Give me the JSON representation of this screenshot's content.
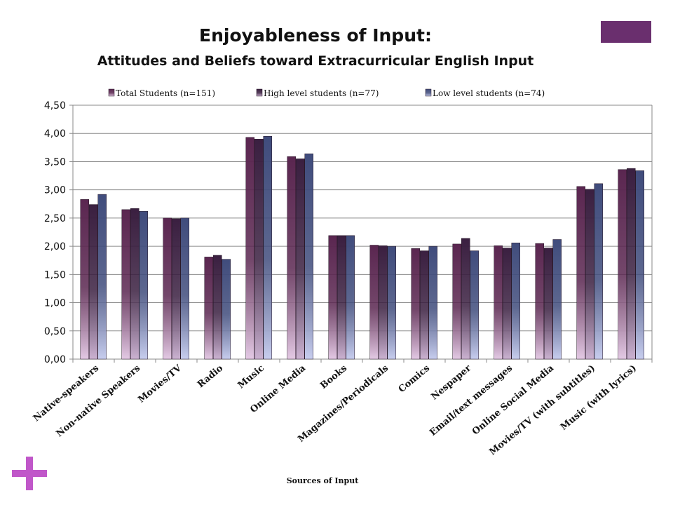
{
  "slide": {
    "title": "Enjoyableness of Input:",
    "subtitle": "Attitudes and Beliefs toward Extracurricular English Input",
    "accent_color": "#6a2f6e",
    "plus_color": "#c057c9"
  },
  "chart_data": {
    "type": "bar",
    "xlabel": "Sources of Input",
    "ylabel": "",
    "ylim": [
      0,
      4.5
    ],
    "yticks": [
      "0,00",
      "0,50",
      "1,00",
      "1,50",
      "2,00",
      "2,50",
      "3,00",
      "3,50",
      "4,00",
      "4,50"
    ],
    "grid": true,
    "legend_position": "top",
    "categories": [
      "Native-speakers",
      "Non-native Speakers",
      "Movies/TV",
      "Radio",
      "Music",
      "Online Media",
      "Books",
      "Magazines/Periodicals",
      "Comics",
      "Nespaper",
      "Email/text messages",
      "Online Social Media",
      "Movies/TV (with subtitles)",
      "Music (with lyrics)"
    ],
    "series": [
      {
        "name": "Total Students (n=151)",
        "color": "#5a2650",
        "light": "#e3c9e4",
        "values": [
          2.83,
          2.65,
          2.5,
          1.81,
          3.93,
          3.59,
          2.19,
          2.02,
          1.96,
          2.04,
          2.01,
          2.05,
          3.06,
          3.36
        ]
      },
      {
        "name": "High level students (n=77)",
        "color": "#3a1f40",
        "light": "#cbb2d1",
        "values": [
          2.74,
          2.67,
          2.49,
          1.84,
          3.9,
          3.55,
          2.19,
          2.01,
          1.92,
          2.14,
          1.97,
          1.97,
          3.01,
          3.38
        ]
      },
      {
        "name": "Low level students (n=74)",
        "color": "#404c7c",
        "light": "#c7cdee",
        "values": [
          2.92,
          2.62,
          2.5,
          1.77,
          3.95,
          3.64,
          2.19,
          2.0,
          2.0,
          1.92,
          2.06,
          2.12,
          3.11,
          3.34
        ]
      }
    ]
  }
}
